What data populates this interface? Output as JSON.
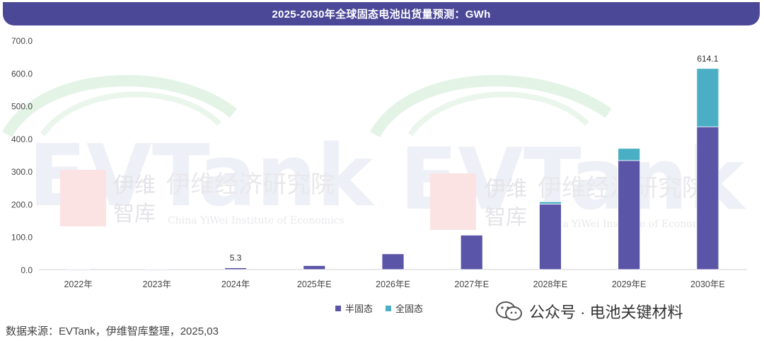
{
  "title": "2025-2030年全球固态电池出货量预测：GWh",
  "source": "数据来源：EVTank，伊维智库整理，2025,03",
  "watermark": {
    "brand_cn": "伊维经济研究院",
    "brand_en": "China YiWei Institute of Economics",
    "logo_text": "EVTank",
    "short_cn_1": "伊维",
    "short_cn_2": "智库"
  },
  "wechat_account": "公众号 · 电池关键材料",
  "colors": {
    "title_bg": "#4b4897",
    "semi_solid": "#5b55a8",
    "all_solid": "#4aafc4",
    "grid": "#e6e6e6"
  },
  "chart_data": {
    "type": "bar",
    "stacked": true,
    "categories": [
      "2022年",
      "2023年",
      "2024年",
      "2025年E",
      "2026年E",
      "2027年E",
      "2028年E",
      "2029年E",
      "2030年E"
    ],
    "series": [
      {
        "name": "半固态",
        "values": [
          0.2,
          0.5,
          5.3,
          12,
          48,
          105,
          200,
          333,
          436
        ]
      },
      {
        "name": "全固态",
        "values": [
          0,
          0,
          0,
          0,
          0,
          0,
          7,
          37,
          178.1
        ]
      }
    ],
    "data_labels": [
      {
        "category": "2024年",
        "text": "5.3"
      },
      {
        "category": "2030年E",
        "text": "614.1"
      }
    ],
    "ylim": [
      0,
      700
    ],
    "yticks": [
      "0.0",
      "100.0",
      "200.0",
      "300.0",
      "400.0",
      "500.0",
      "600.0",
      "700.0"
    ],
    "grid": false,
    "legend_position": "bottom-center"
  }
}
